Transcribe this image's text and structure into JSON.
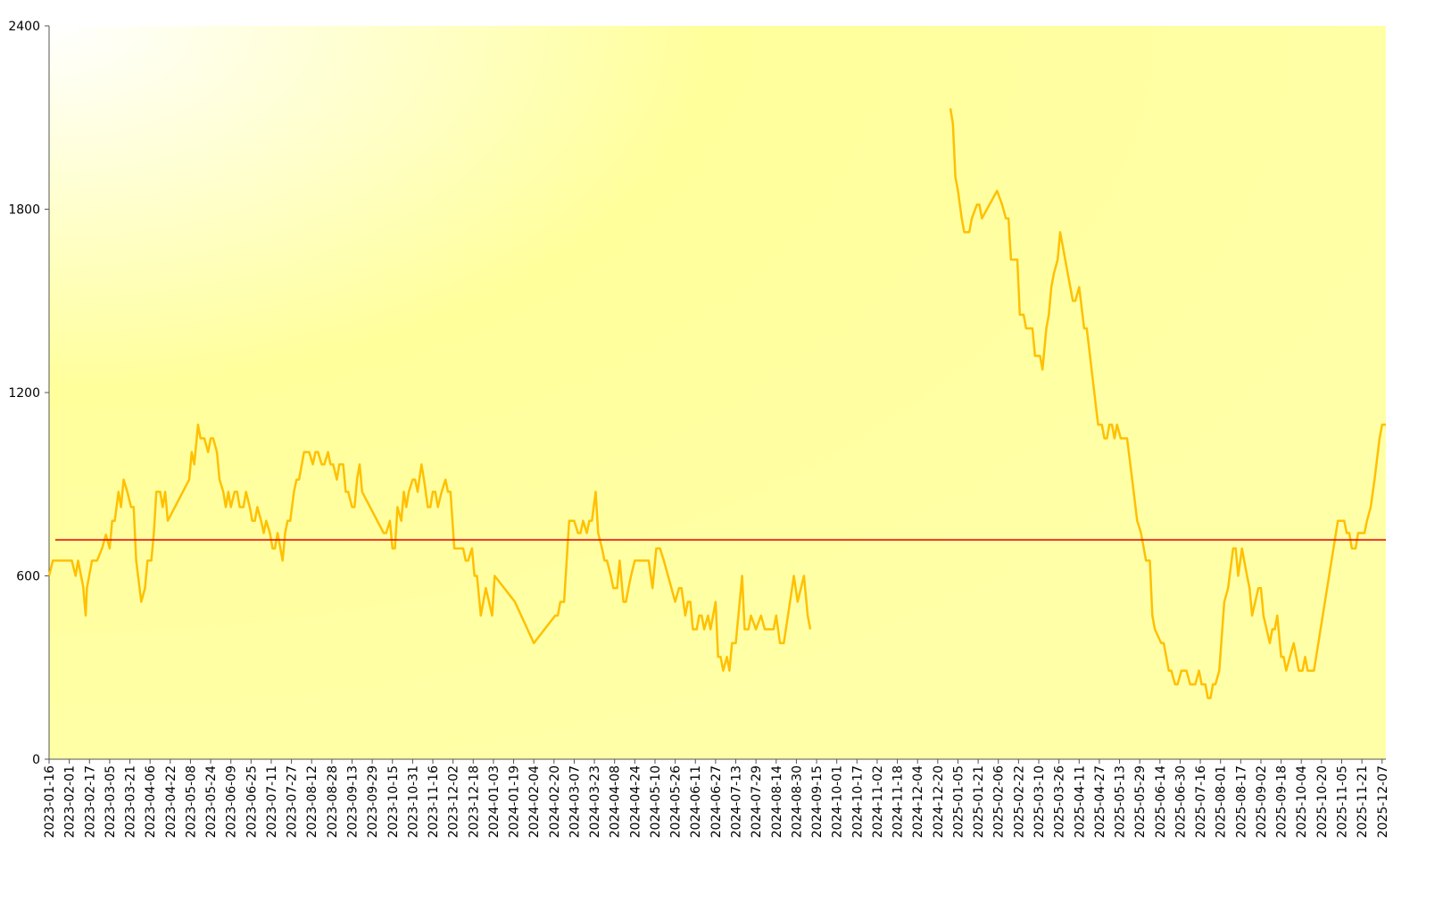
{
  "chart_data": {
    "type": "line",
    "color": "#ffc000",
    "x": [
      "2023-01-16",
      "2023-01-19",
      "2023-02-03",
      "2023-02-06",
      "2023-02-08",
      "2023-02-12",
      "2023-02-14",
      "2023-02-15",
      "2023-02-19",
      "2023-02-23",
      "2023-02-27",
      "2023-03-02",
      "2023-03-05",
      "2023-03-07",
      "2023-03-09",
      "2023-03-12",
      "2023-03-14",
      "2023-03-16",
      "2023-03-19",
      "2023-03-22",
      "2023-03-24",
      "2023-03-26",
      "2023-03-30",
      "2023-04-02",
      "2023-04-04",
      "2023-04-07",
      "2023-04-09",
      "2023-04-11",
      "2023-04-14",
      "2023-04-16",
      "2023-04-18",
      "2023-04-20",
      "2023-05-07",
      "2023-05-09",
      "2023-05-11",
      "2023-05-14",
      "2023-05-16",
      "2023-05-19",
      "2023-05-22",
      "2023-05-24",
      "2023-05-26",
      "2023-05-29",
      "2023-05-31",
      "2023-06-03",
      "2023-06-05",
      "2023-06-07",
      "2023-06-09",
      "2023-06-12",
      "2023-06-14",
      "2023-06-16",
      "2023-06-19",
      "2023-06-21",
      "2023-06-24",
      "2023-06-26",
      "2023-06-28",
      "2023-06-30",
      "2023-07-03",
      "2023-07-05",
      "2023-07-07",
      "2023-07-10",
      "2023-07-12",
      "2023-07-14",
      "2023-07-16",
      "2023-07-20",
      "2023-07-22",
      "2023-07-24",
      "2023-07-26",
      "2023-07-29",
      "2023-07-31",
      "2023-08-02",
      "2023-08-06",
      "2023-08-10",
      "2023-08-13",
      "2023-08-15",
      "2023-08-17",
      "2023-08-20",
      "2023-08-22",
      "2023-08-25",
      "2023-08-27",
      "2023-08-29",
      "2023-09-01",
      "2023-09-03",
      "2023-09-06",
      "2023-09-08",
      "2023-09-10",
      "2023-09-13",
      "2023-09-15",
      "2023-09-17",
      "2023-09-19",
      "2023-09-21",
      "2023-10-08",
      "2023-10-10",
      "2023-10-13",
      "2023-10-15",
      "2023-10-17",
      "2023-10-19",
      "2023-10-22",
      "2023-10-24",
      "2023-10-26",
      "2023-10-28",
      "2023-10-31",
      "2023-11-02",
      "2023-11-04",
      "2023-11-07",
      "2023-11-09",
      "2023-11-12",
      "2023-11-14",
      "2023-11-16",
      "2023-11-18",
      "2023-11-20",
      "2023-11-23",
      "2023-11-26",
      "2023-11-28",
      "2023-11-30",
      "2023-12-03",
      "2023-12-10",
      "2023-12-12",
      "2023-12-14",
      "2023-12-17",
      "2023-12-19",
      "2023-12-21",
      "2023-12-24",
      "2023-12-28",
      "2024-01-02",
      "2024-01-04",
      "2024-01-20",
      "2024-02-04",
      "2024-02-21",
      "2024-02-23",
      "2024-02-25",
      "2024-02-28",
      "2024-03-03",
      "2024-03-07",
      "2024-03-10",
      "2024-03-12",
      "2024-03-14",
      "2024-03-17",
      "2024-03-19",
      "2024-03-21",
      "2024-03-24",
      "2024-03-26",
      "2024-03-29",
      "2024-03-31",
      "2024-04-02",
      "2024-04-05",
      "2024-04-07",
      "2024-04-10",
      "2024-04-12",
      "2024-04-15",
      "2024-04-17",
      "2024-04-19",
      "2024-04-21",
      "2024-04-24",
      "2024-05-05",
      "2024-05-08",
      "2024-05-11",
      "2024-05-14",
      "2024-05-17",
      "2024-05-26",
      "2024-05-29",
      "2024-05-31",
      "2024-06-03",
      "2024-06-05",
      "2024-06-07",
      "2024-06-09",
      "2024-06-12",
      "2024-06-14",
      "2024-06-16",
      "2024-06-18",
      "2024-06-21",
      "2024-06-23",
      "2024-06-27",
      "2024-06-29",
      "2024-07-01",
      "2024-07-03",
      "2024-07-06",
      "2024-07-08",
      "2024-07-10",
      "2024-07-13",
      "2024-07-18",
      "2024-07-20",
      "2024-07-23",
      "2024-07-25",
      "2024-07-29",
      "2024-08-02",
      "2024-08-05",
      "2024-08-12",
      "2024-08-14",
      "2024-08-17",
      "2024-08-20",
      "2024-08-25",
      "2024-08-28",
      "2024-08-31",
      "2024-09-05",
      "2024-09-08",
      "2024-09-10",
      "2024-11-01",
      "2024-12-30",
      "2025-01-01",
      "2025-01-03",
      "2025-01-05",
      "2025-01-08",
      "2025-01-10",
      "2025-01-14",
      "2025-01-16",
      "2025-01-20",
      "2025-01-22",
      "2025-01-24",
      "2025-02-05",
      "2025-02-09",
      "2025-02-12",
      "2025-02-14",
      "2025-02-16",
      "2025-02-21",
      "2025-02-23",
      "2025-02-26",
      "2025-02-28",
      "2025-03-05",
      "2025-03-07",
      "2025-03-11",
      "2025-03-13",
      "2025-03-16",
      "2025-03-18",
      "2025-03-20",
      "2025-03-22",
      "2025-03-25",
      "2025-03-27",
      "2025-04-06",
      "2025-04-08",
      "2025-04-11",
      "2025-04-15",
      "2025-04-17",
      "2025-04-26",
      "2025-04-29",
      "2025-05-01",
      "2025-05-03",
      "2025-05-05",
      "2025-05-07",
      "2025-05-09",
      "2025-05-11",
      "2025-05-14",
      "2025-05-19",
      "2025-05-23",
      "2025-05-27",
      "2025-05-30",
      "2025-06-03",
      "2025-06-06",
      "2025-06-08",
      "2025-06-10",
      "2025-06-15",
      "2025-06-17",
      "2025-06-19",
      "2025-06-21",
      "2025-06-23",
      "2025-06-26",
      "2025-06-28",
      "2025-07-01",
      "2025-07-05",
      "2025-07-08",
      "2025-07-12",
      "2025-07-15",
      "2025-07-17",
      "2025-07-20",
      "2025-07-22",
      "2025-07-24",
      "2025-07-26",
      "2025-07-28",
      "2025-07-31",
      "2025-08-04",
      "2025-08-07",
      "2025-08-11",
      "2025-08-13",
      "2025-08-15",
      "2025-08-18",
      "2025-08-22",
      "2025-08-24",
      "2025-08-26",
      "2025-08-31",
      "2025-09-02",
      "2025-09-04",
      "2025-09-09",
      "2025-09-11",
      "2025-09-13",
      "2025-09-15",
      "2025-09-18",
      "2025-09-20",
      "2025-09-22",
      "2025-09-25",
      "2025-09-28",
      "2025-09-30",
      "2025-10-02",
      "2025-10-05",
      "2025-10-07",
      "2025-10-09",
      "2025-10-14",
      "2025-11-02",
      "2025-11-07",
      "2025-11-09",
      "2025-11-11",
      "2025-11-13",
      "2025-11-16",
      "2025-11-18",
      "2025-11-23",
      "2025-11-25",
      "2025-11-28",
      "2025-12-01",
      "2025-12-05",
      "2025-12-07",
      "2025-12-10"
    ],
    "values": [
      600,
      650,
      650,
      600,
      650,
      565,
      470,
      560,
      650,
      650,
      690,
      735,
      690,
      780,
      780,
      875,
      825,
      915,
      875,
      825,
      825,
      650,
      515,
      560,
      650,
      650,
      740,
      875,
      875,
      825,
      875,
      780,
      915,
      1005,
      965,
      1095,
      1050,
      1050,
      1005,
      1050,
      1050,
      1005,
      915,
      875,
      825,
      875,
      825,
      875,
      875,
      825,
      825,
      875,
      825,
      780,
      780,
      825,
      780,
      740,
      780,
      740,
      690,
      690,
      740,
      650,
      740,
      780,
      780,
      875,
      915,
      915,
      1005,
      1005,
      965,
      1005,
      1005,
      965,
      965,
      1005,
      965,
      965,
      915,
      965,
      965,
      875,
      875,
      825,
      825,
      915,
      965,
      875,
      740,
      740,
      780,
      690,
      690,
      825,
      780,
      875,
      825,
      875,
      915,
      915,
      875,
      965,
      915,
      825,
      825,
      875,
      875,
      825,
      875,
      915,
      875,
      875,
      690,
      690,
      650,
      650,
      690,
      600,
      600,
      470,
      560,
      470,
      600,
      515,
      380,
      470,
      470,
      515,
      515,
      780,
      780,
      740,
      740,
      780,
      740,
      780,
      780,
      875,
      740,
      690,
      650,
      650,
      600,
      560,
      560,
      650,
      515,
      515,
      560,
      600,
      650,
      650,
      560,
      690,
      690,
      650,
      515,
      560,
      560,
      470,
      515,
      515,
      425,
      425,
      470,
      470,
      425,
      470,
      425,
      515,
      335,
      335,
      290,
      335,
      290,
      380,
      380,
      600,
      425,
      425,
      470,
      425,
      470,
      425,
      425,
      470,
      380,
      380,
      515,
      600,
      515,
      600,
      470,
      425,
      null,
      2130,
      2080,
      1905,
      1860,
      1770,
      1725,
      1725,
      1770,
      1815,
      1815,
      1770,
      1860,
      1815,
      1770,
      1770,
      1635,
      1635,
      1455,
      1455,
      1410,
      1410,
      1320,
      1320,
      1275,
      1410,
      1455,
      1545,
      1590,
      1635,
      1725,
      1500,
      1500,
      1545,
      1410,
      1410,
      1095,
      1095,
      1050,
      1050,
      1095,
      1095,
      1050,
      1095,
      1050,
      1050,
      915,
      780,
      740,
      650,
      650,
      470,
      425,
      380,
      380,
      335,
      290,
      290,
      245,
      245,
      290,
      290,
      245,
      245,
      290,
      245,
      245,
      200,
      200,
      245,
      245,
      290,
      515,
      560,
      690,
      690,
      600,
      690,
      600,
      560,
      470,
      560,
      560,
      470,
      380,
      425,
      425,
      470,
      335,
      335,
      290,
      335,
      380,
      335,
      290,
      290,
      335,
      290,
      290,
      780,
      780,
      740,
      740,
      690,
      690,
      740,
      740,
      780,
      825,
      915,
      1050,
      1095,
      1095
    ],
    "xlim": [
      "2023-01-16",
      "2025-12-10"
    ],
    "xticks": [
      "2023-01-16",
      "2023-02-01",
      "2023-02-17",
      "2023-03-05",
      "2023-03-21",
      "2023-04-06",
      "2023-04-22",
      "2023-05-08",
      "2023-05-24",
      "2023-06-09",
      "2023-06-25",
      "2023-07-11",
      "2023-07-27",
      "2023-08-12",
      "2023-08-28",
      "2023-09-13",
      "2023-09-29",
      "2023-10-15",
      "2023-10-31",
      "2023-11-16",
      "2023-12-02",
      "2023-12-18",
      "2024-01-03",
      "2024-01-19",
      "2024-02-04",
      "2024-02-20",
      "2024-03-07",
      "2024-03-23",
      "2024-04-08",
      "2024-04-24",
      "2024-05-10",
      "2024-05-26",
      "2024-06-11",
      "2024-06-27",
      "2024-07-13",
      "2024-07-29",
      "2024-08-14",
      "2024-08-30",
      "2024-09-15",
      "2024-10-01",
      "2024-10-17",
      "2024-11-02",
      "2024-11-18",
      "2024-12-04",
      "2024-12-20",
      "2025-01-05",
      "2025-01-21",
      "2025-02-06",
      "2025-02-22",
      "2025-03-10",
      "2025-03-26",
      "2025-04-11",
      "2025-04-27",
      "2025-05-13",
      "2025-05-29",
      "2025-06-14",
      "2025-06-30",
      "2025-07-16",
      "2025-08-01",
      "2025-08-17",
      "2025-09-02",
      "2025-09-18",
      "2025-10-04",
      "2025-10-20",
      "2025-11-05",
      "2025-11-21",
      "2025-12-07"
    ],
    "ylim": [
      0,
      2400
    ],
    "yticks": [
      0,
      600,
      1200,
      1800,
      2400
    ],
    "reference_line": {
      "value": 718,
      "color": "#e00000"
    }
  }
}
